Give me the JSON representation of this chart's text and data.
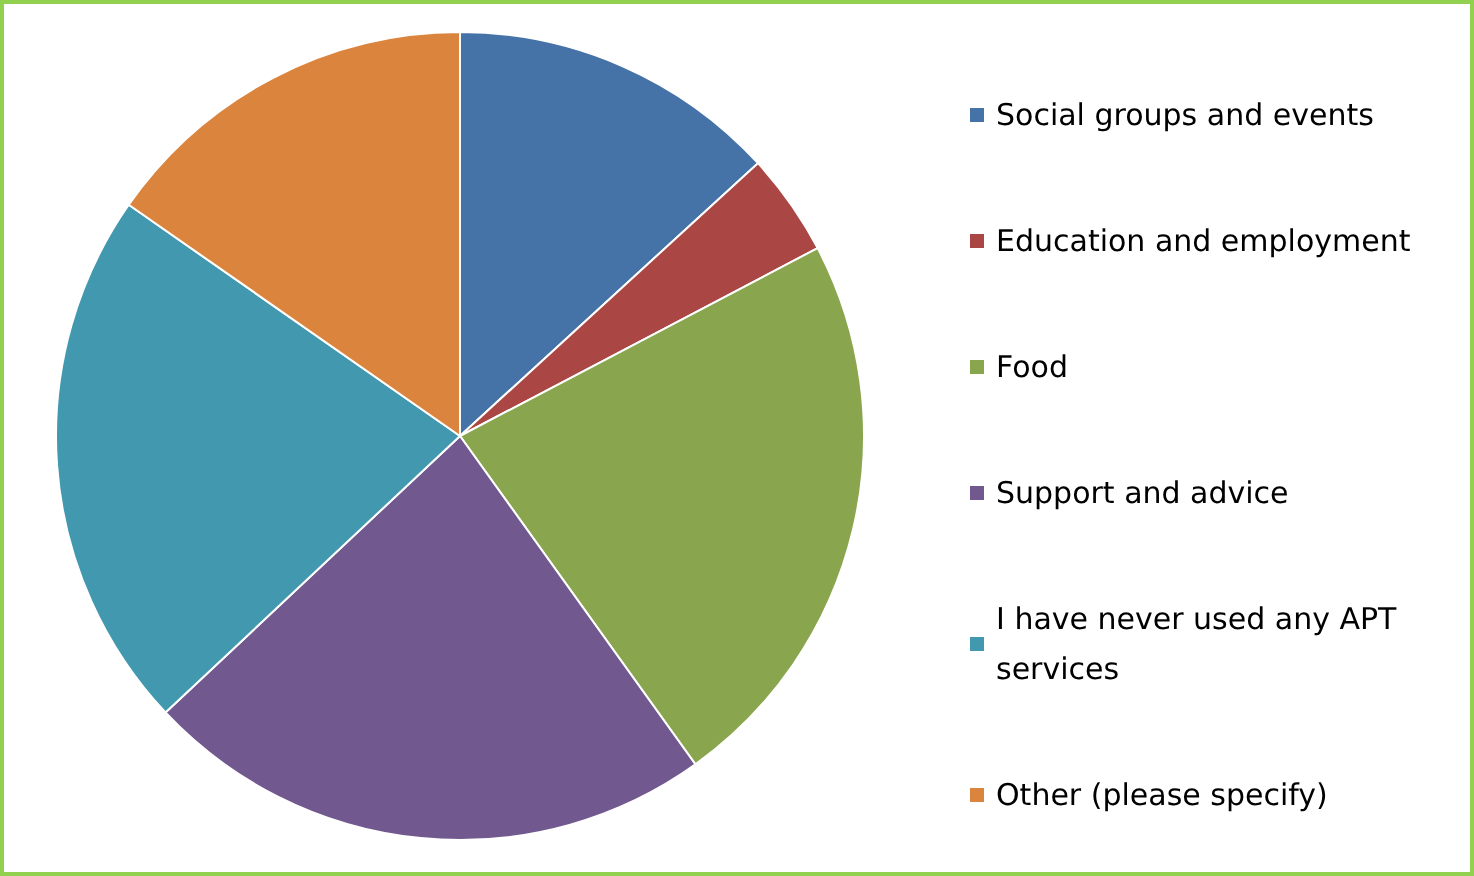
{
  "chart_data": {
    "type": "pie",
    "categories": [
      "Social groups and events",
      "Education and employment",
      "Food",
      "Support and advice",
      "I have never used any APT services",
      "Other (please specify)"
    ],
    "values": [
      13.2,
      4.1,
      22.8,
      22.9,
      21.7,
      15.3
    ],
    "colors": [
      "#4572a7",
      "#aa4643",
      "#89a54e",
      "#71588f",
      "#4198af",
      "#db843d"
    ],
    "legend": "right"
  }
}
